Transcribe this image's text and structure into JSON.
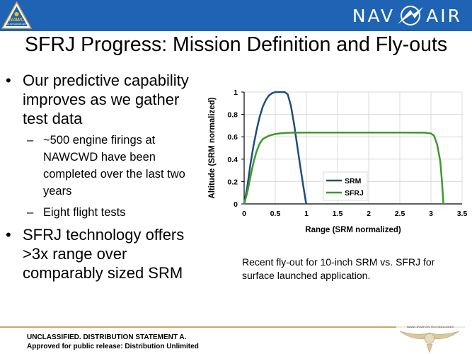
{
  "header": {
    "logo_text": "NAWC",
    "logo_subtext": "NAVAL AIR WARFARE CENTER",
    "brand_left": "NAV",
    "brand_right": "AIR",
    "brand_color": "#1e63b4"
  },
  "slide": {
    "title": "SFRJ Progress: Mission Definition and Fly-outs",
    "bullets": [
      {
        "text": "Our predictive capability improves as we gather test data",
        "sub": [
          "~500 engine firings at NAWCWD have been completed over the last two years",
          "Eight flight tests"
        ]
      },
      {
        "text": "SFRJ technology offers >3x range over comparably sized SRM",
        "sub": []
      }
    ],
    "caption": "Recent fly-out for 10-inch SRM vs. SFRJ for surface launched application."
  },
  "chart_data": {
    "type": "line",
    "xlabel": "Range (SRM normalized)",
    "ylabel": "Altitude (SRM normalized)",
    "xlim": [
      0,
      3.5
    ],
    "ylim": [
      0,
      1
    ],
    "xticks": [
      "0",
      "0.5",
      "1",
      "1.5",
      "2",
      "2.5",
      "3",
      "3.5"
    ],
    "yticks": [
      "0",
      "0.2",
      "0.4",
      "0.6",
      "0.8",
      "1"
    ],
    "grid": true,
    "legend_position": "bottom-center",
    "series": [
      {
        "name": "SRM",
        "color": "#1f4e79",
        "points": [
          [
            0,
            0
          ],
          [
            0.05,
            0.15
          ],
          [
            0.1,
            0.35
          ],
          [
            0.15,
            0.52
          ],
          [
            0.2,
            0.66
          ],
          [
            0.25,
            0.78
          ],
          [
            0.3,
            0.87
          ],
          [
            0.35,
            0.93
          ],
          [
            0.4,
            0.97
          ],
          [
            0.45,
            0.99
          ],
          [
            0.5,
            1.0
          ],
          [
            0.55,
            1.0
          ],
          [
            0.6,
            1.0
          ],
          [
            0.65,
            1.0
          ],
          [
            0.7,
            0.98
          ],
          [
            0.75,
            0.88
          ],
          [
            0.8,
            0.72
          ],
          [
            0.85,
            0.53
          ],
          [
            0.9,
            0.34
          ],
          [
            0.95,
            0.16
          ],
          [
            0.99,
            0.02
          ],
          [
            1.0,
            0
          ]
        ]
      },
      {
        "name": "SFRJ",
        "color": "#3a9a2a",
        "points": [
          [
            0,
            0
          ],
          [
            0.05,
            0.1
          ],
          [
            0.1,
            0.24
          ],
          [
            0.15,
            0.37
          ],
          [
            0.2,
            0.47
          ],
          [
            0.25,
            0.54
          ],
          [
            0.3,
            0.58
          ],
          [
            0.4,
            0.61
          ],
          [
            0.5,
            0.625
          ],
          [
            0.6,
            0.632
          ],
          [
            0.7,
            0.636
          ],
          [
            1.0,
            0.638
          ],
          [
            1.5,
            0.638
          ],
          [
            2.0,
            0.638
          ],
          [
            2.5,
            0.638
          ],
          [
            2.9,
            0.637
          ],
          [
            3.0,
            0.63
          ],
          [
            3.05,
            0.61
          ],
          [
            3.1,
            0.53
          ],
          [
            3.15,
            0.38
          ],
          [
            3.18,
            0.18
          ],
          [
            3.2,
            0.0
          ]
        ]
      }
    ]
  },
  "footer": {
    "line1": "UNCLASSIFIED. DISTRIBUTION STATEMENT A.",
    "line2": "Approved for public release: Distribution Unlimited",
    "emblem_text": "NAVAL AVIATION TECHNOLOGIES"
  }
}
